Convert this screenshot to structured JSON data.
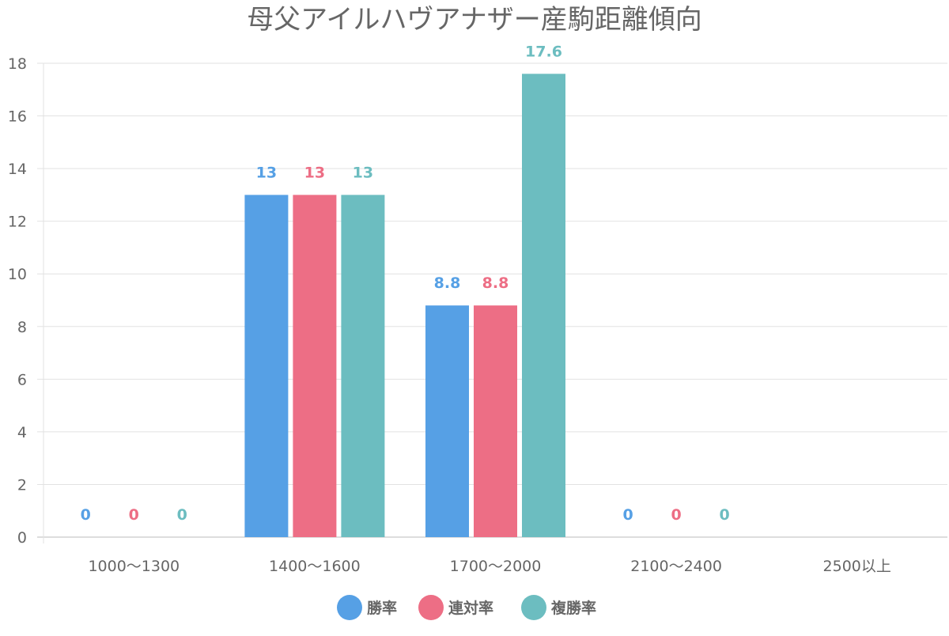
{
  "chart_data": {
    "type": "bar",
    "title": "母父アイルハヴアナザー産駒距離傾向",
    "xlabel": "",
    "ylabel": "",
    "ylim": [
      0,
      18
    ],
    "yticks": [
      0,
      2,
      4,
      6,
      8,
      10,
      12,
      14,
      16,
      18
    ],
    "grid": true,
    "legend_position": "bottom",
    "categories": [
      "1000〜1300",
      "1400〜1600",
      "1700〜2000",
      "2100〜2400",
      "2500以上"
    ],
    "series": [
      {
        "name": "勝率",
        "color": "#56a0e5",
        "values": [
          0,
          13,
          8.8,
          0,
          null
        ]
      },
      {
        "name": "連対率",
        "color": "#ed6e85",
        "values": [
          0,
          13,
          8.8,
          0,
          null
        ]
      },
      {
        "name": "複勝率",
        "color": "#6cbdc0",
        "values": [
          0,
          13,
          17.6,
          0,
          null
        ]
      }
    ]
  }
}
